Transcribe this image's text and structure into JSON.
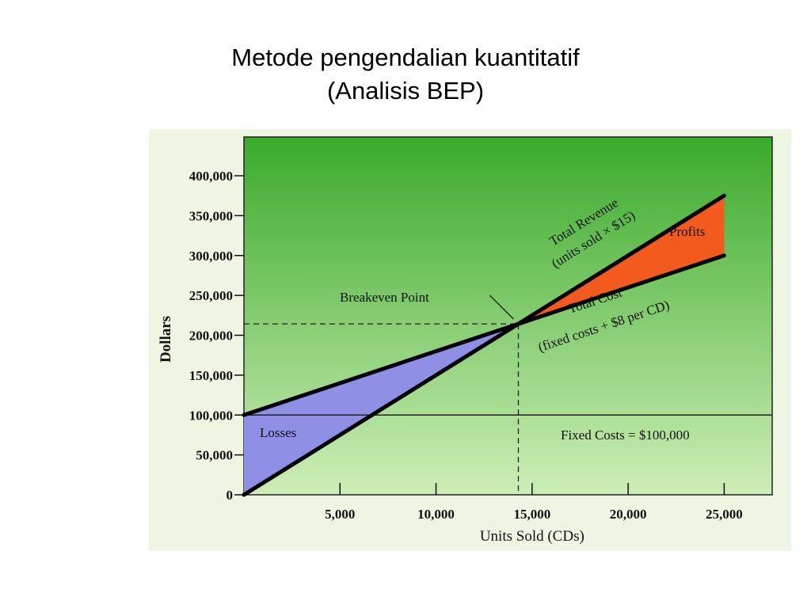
{
  "slide": {
    "title_line1": "Metode pengendalian kuantitatif",
    "title_line2": "(Analisis BEP)"
  },
  "colors": {
    "panel_bg": "#eef6e3",
    "plot_top": "#3aaa2a",
    "plot_bottom": "#cdeeb6",
    "losses_fill": "#8f8fe6",
    "profits_fill": "#f25a1e",
    "line": "#000000"
  },
  "chart_data": {
    "type": "line",
    "xlabel": "Units Sold (CDs)",
    "ylabel": "Dollars",
    "xlim": [
      0,
      27500
    ],
    "ylim": [
      0,
      400000
    ],
    "x_ticks": [
      5000,
      10000,
      15000,
      20000,
      25000
    ],
    "x_tick_labels": [
      "5,000",
      "10,000",
      "15,000",
      "20,000",
      "25,000"
    ],
    "y_ticks": [
      0,
      50000,
      100000,
      150000,
      200000,
      250000,
      300000,
      350000,
      400000
    ],
    "y_tick_labels": [
      "0",
      "50,000",
      "100,000",
      "150,000",
      "200,000",
      "250,000",
      "300,000",
      "350,000",
      "400,000"
    ],
    "series": [
      {
        "name": "Total Revenue",
        "x": [
          0,
          25000
        ],
        "y": [
          0,
          375000
        ]
      },
      {
        "name": "Total Cost",
        "x": [
          0,
          25000
        ],
        "y": [
          100000,
          300000
        ]
      },
      {
        "name": "Fixed Costs",
        "x": [
          0,
          27500
        ],
        "y": [
          100000,
          100000
        ]
      }
    ],
    "breakeven": {
      "x": 14286,
      "y": 214286
    },
    "annotations": {
      "revenue_line1": "Total Revenue",
      "revenue_line2": "(units sold × $15)",
      "cost_line1": "Total Cost",
      "cost_line2": "(fixed costs + $8 per CD)",
      "breakeven": "Breakeven Point",
      "profits": "Profits",
      "losses": "Losses",
      "fixed_costs": "Fixed Costs = $100,000"
    }
  }
}
